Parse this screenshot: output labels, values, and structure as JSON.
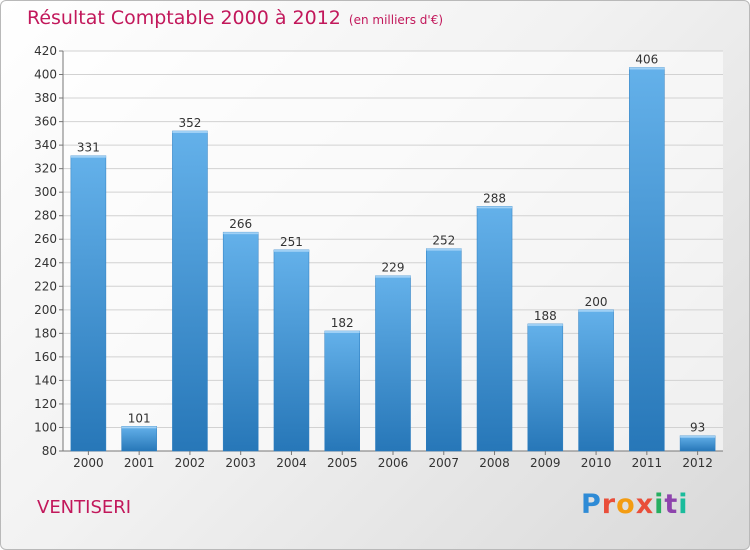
{
  "title": "Résultat Comptable 2000 à 2012",
  "subtitle": "(en milliers d'€)",
  "commune": "VENTISERI",
  "logo": {
    "letters": [
      "P",
      "r",
      "o",
      "x",
      "i",
      "t",
      "i"
    ],
    "colors": [
      "#2e8bd6",
      "#e94e3a",
      "#f39c12",
      "#e94e3a",
      "#27ae60",
      "#8e44ad",
      "#1abc9c"
    ]
  },
  "chart_data": {
    "type": "bar",
    "title": "Résultat Comptable 2000 à 2012",
    "subtitle": "(en milliers d'€)",
    "categories": [
      "2000",
      "2001",
      "2002",
      "2003",
      "2004",
      "2005",
      "2006",
      "2007",
      "2008",
      "2009",
      "2010",
      "2011",
      "2012"
    ],
    "values": [
      331,
      101,
      352,
      266,
      251,
      182,
      229,
      252,
      288,
      188,
      200,
      406,
      93
    ],
    "ylim": [
      80,
      420
    ],
    "yticks": [
      80,
      100,
      120,
      140,
      160,
      180,
      200,
      220,
      240,
      260,
      280,
      300,
      320,
      340,
      360,
      380,
      400,
      420
    ],
    "grid": true,
    "bar_color": "#3f97d9",
    "bar_color_top": "#64b1ea",
    "bar_color_bottom": "#2777b8"
  }
}
